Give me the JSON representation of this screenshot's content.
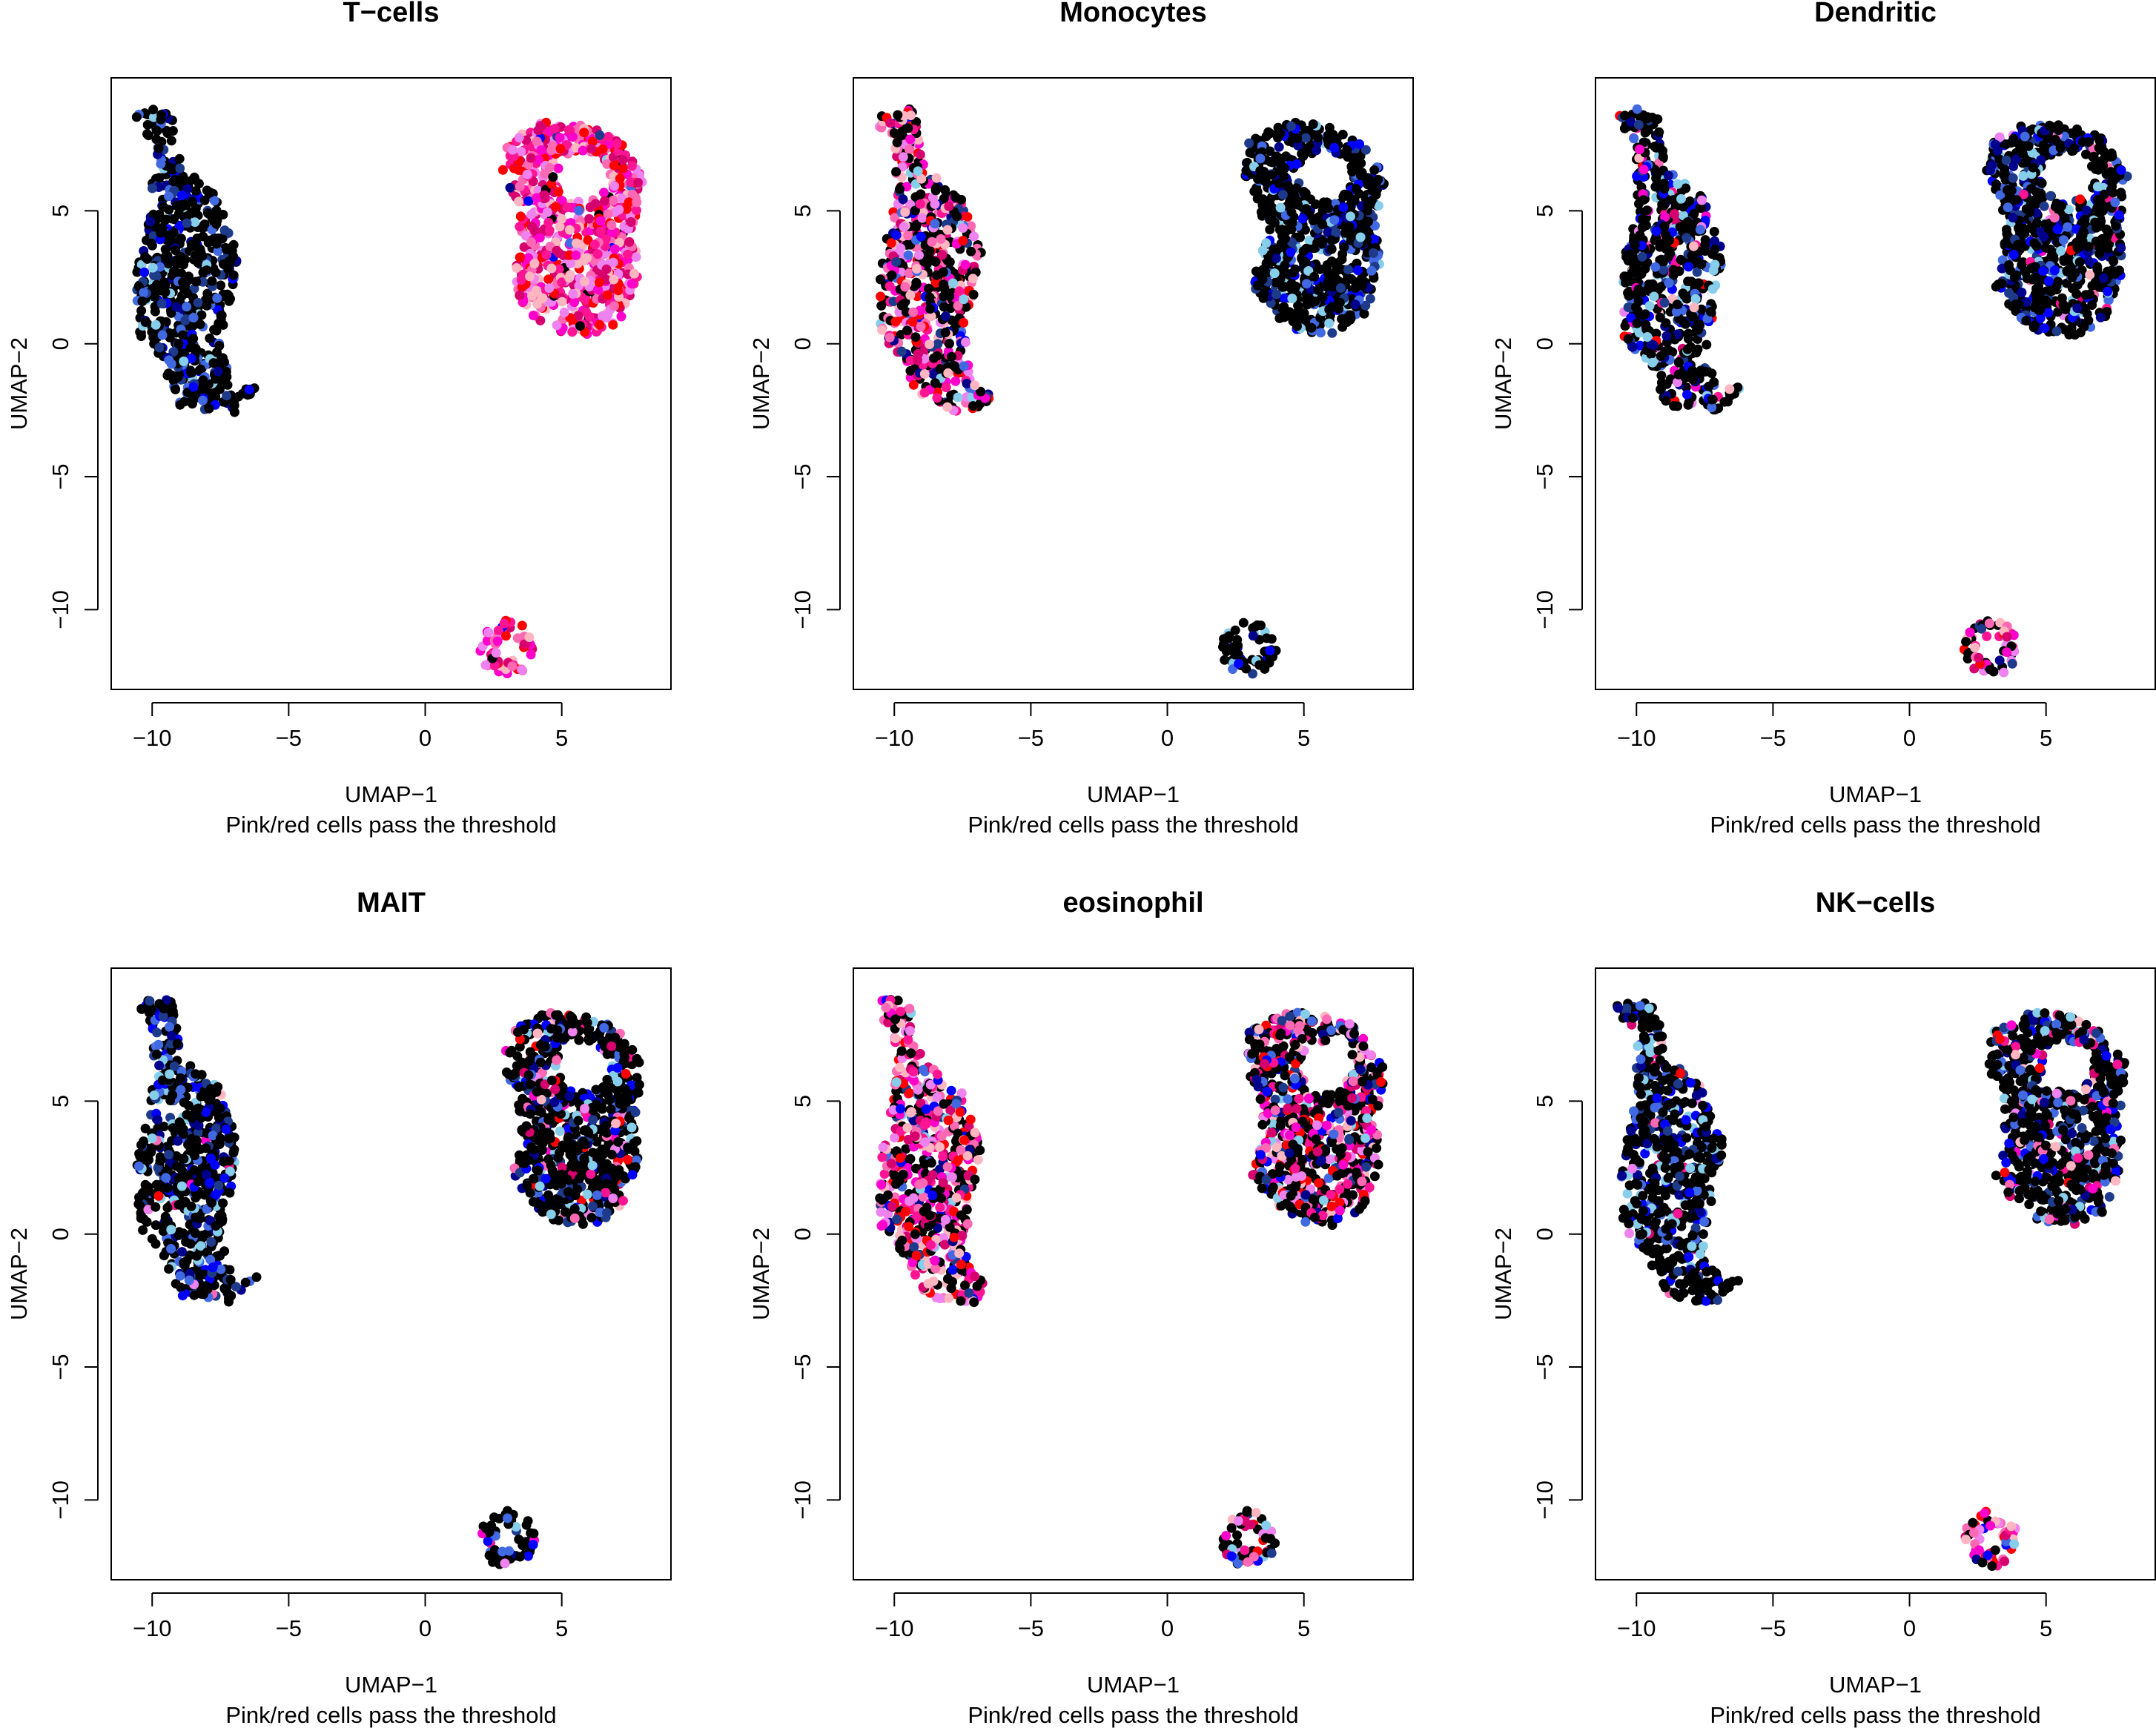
{
  "figure": {
    "xlabel": "UMAP−1",
    "ylabel": "UMAP−2",
    "subtitle": "Pink/red cells pass the threshold"
  },
  "colors": {
    "background": "#ffffff",
    "axis": "#000000",
    "pass_palette": [
      "#ff1493",
      "#ff00cc",
      "#ff69b4",
      "#ffb6c1",
      "#ee82ee",
      "#ff0000",
      "#d6006f"
    ],
    "fail_palette": [
      "#000000",
      "#00008b",
      "#0000ff",
      "#4169e1",
      "#87ceeb",
      "#1e3a8a"
    ]
  },
  "chart_data": [
    {
      "type": "scatter",
      "title": "T−cells",
      "xlabel": "UMAP−1",
      "ylabel": "UMAP−2",
      "subtitle": "Pink/red cells pass the threshold",
      "xlim": [
        -11.5,
        9
      ],
      "ylim": [
        -13,
        10
      ],
      "xticks": [
        -10,
        -5,
        0,
        5
      ],
      "yticks": [
        -10,
        -5,
        0,
        5
      ],
      "clusters": [
        {
          "name": "left",
          "x_range": [
            -10.8,
            -6.1
          ],
          "y_range": [
            -2.6,
            8.9
          ],
          "high_fraction": 0.0
        },
        {
          "name": "right",
          "x_range": [
            2.6,
            8.1
          ],
          "y_range": [
            0.3,
            8.5
          ],
          "high_fraction": 0.95
        },
        {
          "name": "bottom",
          "x_range": [
            2.0,
            4.0
          ],
          "y_range": [
            -12.5,
            -10.4
          ],
          "high_fraction": 0.9
        }
      ]
    },
    {
      "type": "scatter",
      "title": "Monocytes",
      "xlabel": "UMAP−1",
      "ylabel": "UMAP−2",
      "subtitle": "Pink/red cells pass the threshold",
      "xlim": [
        -11.5,
        9
      ],
      "ylim": [
        -13,
        10
      ],
      "xticks": [
        -10,
        -5,
        0,
        5
      ],
      "yticks": [
        -10,
        -5,
        0,
        5
      ],
      "clusters": [
        {
          "name": "left",
          "x_range": [
            -10.8,
            -6.1
          ],
          "y_range": [
            -2.6,
            8.9
          ],
          "high_fraction": 0.5
        },
        {
          "name": "right",
          "x_range": [
            2.6,
            8.1
          ],
          "y_range": [
            0.3,
            8.5
          ],
          "high_fraction": 0.0
        },
        {
          "name": "bottom",
          "x_range": [
            2.0,
            4.0
          ],
          "y_range": [
            -12.5,
            -10.4
          ],
          "high_fraction": 0.0
        }
      ]
    },
    {
      "type": "scatter",
      "title": "Dendritic",
      "xlabel": "UMAP−1",
      "ylabel": "UMAP−2",
      "subtitle": "Pink/red cells pass the threshold",
      "xlim": [
        -11.5,
        9
      ],
      "ylim": [
        -13,
        10
      ],
      "xticks": [
        -10,
        -5,
        0,
        5
      ],
      "yticks": [
        -10,
        -5,
        0,
        5
      ],
      "clusters": [
        {
          "name": "left",
          "x_range": [
            -10.8,
            -6.1
          ],
          "y_range": [
            -2.6,
            8.9
          ],
          "high_fraction": 0.12
        },
        {
          "name": "right",
          "x_range": [
            2.6,
            8.1
          ],
          "y_range": [
            0.3,
            8.5
          ],
          "high_fraction": 0.05
        },
        {
          "name": "bottom",
          "x_range": [
            2.0,
            4.0
          ],
          "y_range": [
            -12.5,
            -10.4
          ],
          "high_fraction": 0.55
        }
      ]
    },
    {
      "type": "scatter",
      "title": "MAIT",
      "xlabel": "UMAP−1",
      "ylabel": "UMAP−2",
      "subtitle": "Pink/red cells pass the threshold",
      "xlim": [
        -11.5,
        9
      ],
      "ylim": [
        -13,
        10
      ],
      "xticks": [
        -10,
        -5,
        0,
        5
      ],
      "yticks": [
        -10,
        -5,
        0,
        5
      ],
      "clusters": [
        {
          "name": "left",
          "x_range": [
            -10.8,
            -6.1
          ],
          "y_range": [
            -2.6,
            8.9
          ],
          "high_fraction": 0.03
        },
        {
          "name": "right",
          "x_range": [
            2.6,
            8.1
          ],
          "y_range": [
            0.3,
            8.5
          ],
          "high_fraction": 0.15
        },
        {
          "name": "bottom",
          "x_range": [
            2.0,
            4.0
          ],
          "y_range": [
            -12.5,
            -10.4
          ],
          "high_fraction": 0.1
        }
      ]
    },
    {
      "type": "scatter",
      "title": "eosinophil",
      "xlabel": "UMAP−1",
      "ylabel": "UMAP−2",
      "subtitle": "Pink/red cells pass the threshold",
      "xlim": [
        -11.5,
        9
      ],
      "ylim": [
        -13,
        10
      ],
      "xticks": [
        -10,
        -5,
        0,
        5
      ],
      "yticks": [
        -10,
        -5,
        0,
        5
      ],
      "clusters": [
        {
          "name": "left",
          "x_range": [
            -10.8,
            -6.1
          ],
          "y_range": [
            -2.6,
            8.9
          ],
          "high_fraction": 0.6
        },
        {
          "name": "right",
          "x_range": [
            2.6,
            8.1
          ],
          "y_range": [
            0.3,
            8.5
          ],
          "high_fraction": 0.4
        },
        {
          "name": "bottom",
          "x_range": [
            2.0,
            4.0
          ],
          "y_range": [
            -12.5,
            -10.4
          ],
          "high_fraction": 0.35
        }
      ]
    },
    {
      "type": "scatter",
      "title": "NK−cells",
      "xlabel": "UMAP−1",
      "ylabel": "UMAP−2",
      "subtitle": "Pink/red cells pass the threshold",
      "xlim": [
        -11.5,
        9
      ],
      "ylim": [
        -13,
        10
      ],
      "xticks": [
        -10,
        -5,
        0,
        5
      ],
      "yticks": [
        -10,
        -5,
        0,
        5
      ],
      "clusters": [
        {
          "name": "left",
          "x_range": [
            -10.8,
            -6.1
          ],
          "y_range": [
            -2.6,
            8.9
          ],
          "high_fraction": 0.03
        },
        {
          "name": "right",
          "x_range": [
            2.6,
            8.1
          ],
          "y_range": [
            0.3,
            8.5
          ],
          "high_fraction": 0.12
        },
        {
          "name": "bottom",
          "x_range": [
            2.0,
            4.0
          ],
          "y_range": [
            -12.5,
            -10.4
          ],
          "high_fraction": 0.75
        }
      ]
    }
  ]
}
